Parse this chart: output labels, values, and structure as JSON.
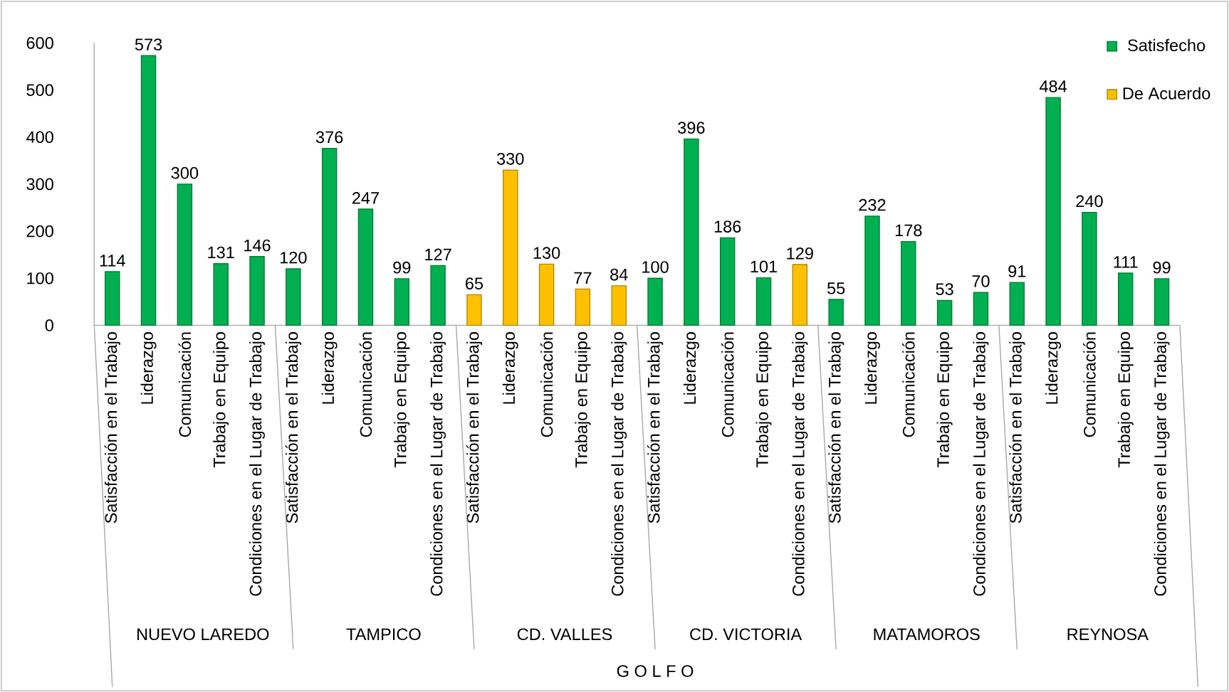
{
  "chart_data": {
    "type": "bar",
    "xlabel": "G O L F O",
    "categories": [
      "Satisfacción en el Trabajo",
      "Liderazgo",
      "Comunicación",
      "Trabajo en Equipo",
      "Condiciones en el Lugar de Trabajo",
      "Satisfacción en el Trabajo",
      "Liderazgo",
      "Comunicación",
      "Trabajo en Equipo",
      "Condiciones en el Lugar de Trabajo",
      "Satisfacción en el Trabajo",
      "Liderazgo",
      "Comunicación",
      "Trabajo en Equipo",
      "Condiciones en el Lugar de Trabajo",
      "Satisfacción en el Trabajo",
      "Liderazgo",
      "Comunicación",
      "Trabajo en Equipo",
      "Condiciones en el Lugar de Trabajo",
      "Satisfacción en el Trabajo",
      "Liderazgo",
      "Comunicación",
      "Trabajo en Equipo",
      "Condiciones en el Lugar de Trabajo",
      "Satisfacción en el Trabajo",
      "Liderazgo",
      "Comunicación",
      "Trabajo en Equipo",
      "Condiciones en el Lugar de Trabajo"
    ],
    "series": [
      {
        "name": "Satisfecho",
        "color": "#00b050",
        "values": [
          114,
          573,
          300,
          131,
          146,
          120,
          376,
          247,
          99,
          127,
          null,
          null,
          null,
          null,
          null,
          100,
          396,
          186,
          101,
          null,
          55,
          232,
          178,
          53,
          70,
          91,
          484,
          240,
          111,
          99
        ]
      },
      {
        "name": "De Acuerdo",
        "color": "#ffc000",
        "values": [
          null,
          null,
          null,
          null,
          null,
          null,
          null,
          null,
          null,
          null,
          65,
          330,
          130,
          77,
          84,
          null,
          null,
          null,
          null,
          129,
          null,
          null,
          null,
          null,
          null,
          null,
          null,
          null,
          null,
          null
        ]
      }
    ],
    "annotations": [
      "NUEVO LAREDO",
      "TAMPICO",
      "CD. VALLES",
      "CD. VICTORIA",
      "MATAMOROS",
      "REYNOSA"
    ],
    "ylim": [
      0,
      600
    ],
    "yticks": [
      0,
      100,
      200,
      300,
      400,
      500,
      600
    ],
    "data_labels": true,
    "legend": "top right"
  }
}
